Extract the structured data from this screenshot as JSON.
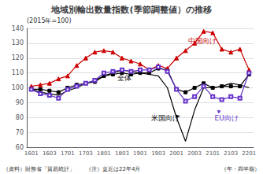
{
  "chart_data": {
    "type": "line",
    "title": "地域別輸出数量指数(季節調整値）の推移",
    "ylabel": "(2015年=100)",
    "xlabel": "（年・四半期）",
    "source_note": "（資料）財務省「貿易統計」　　（注）直近は22年4月",
    "categories": [
      "1601",
      null,
      "1603",
      null,
      "1701",
      null,
      "1703",
      null,
      "1801",
      null,
      "1803",
      null,
      "1901",
      null,
      "1903",
      null,
      "2001",
      null,
      "2003",
      null,
      "2101",
      null,
      "2103",
      null,
      "2201"
    ],
    "ylim": [
      60,
      140
    ],
    "yticks": [
      60,
      70,
      80,
      90,
      100,
      110,
      120,
      130,
      140
    ],
    "grid": true,
    "series": [
      {
        "name": "全体",
        "color": "#000000",
        "marker": "square",
        "line_style": "solid",
        "values": [
          99,
          99,
          98,
          97,
          100,
          102,
          103,
          104,
          108,
          109,
          110,
          109,
          110,
          110,
          113,
          112,
          99,
          97,
          100,
          103,
          100,
          101,
          101,
          101,
          109
        ]
      },
      {
        "name": "中国向け",
        "color": "#cc0000",
        "marker": "triangle",
        "line_style": "solid",
        "values": [
          101,
          102,
          103,
          106,
          108,
          115,
          120,
          124,
          125,
          124,
          120,
          118,
          116,
          112,
          115,
          113,
          120,
          125,
          130,
          138,
          137,
          126,
          124,
          126,
          112
        ]
      },
      {
        "name": "米国向け",
        "color": "#000000",
        "marker": "none",
        "line_style": "solid",
        "values": [
          99,
          97,
          96,
          95,
          98,
          100,
          103,
          105,
          108,
          110,
          112,
          111,
          110,
          109,
          108,
          100,
          80,
          64,
          85,
          100,
          100,
          101,
          103,
          102,
          100
        ]
      },
      {
        "name": "EU向け",
        "color": "#6633cc",
        "marker": "square-open",
        "line_style": "solid",
        "values": [
          99,
          96,
          95,
          93,
          99,
          101,
          103,
          105,
          110,
          111,
          112,
          111,
          112,
          112,
          114,
          111,
          99,
          91,
          94,
          101,
          94,
          92,
          94,
          93,
          110
        ]
      }
    ],
    "annotations": [
      {
        "text": "全体",
        "x": 9.5,
        "y": 104,
        "color": "#000000"
      },
      {
        "text": "中国向け",
        "x": 17.3,
        "y": 129,
        "color": "#cc0000"
      },
      {
        "text": "米国向け",
        "x": 13.2,
        "y": 77,
        "color": "#000000",
        "arrow_x": 16.3,
        "arrow_y": 81
      },
      {
        "text": "EU向け",
        "x": 20.2,
        "y": 77,
        "color": "#6633cc",
        "arrow_x": 20.5,
        "arrow_y": 85
      }
    ]
  }
}
